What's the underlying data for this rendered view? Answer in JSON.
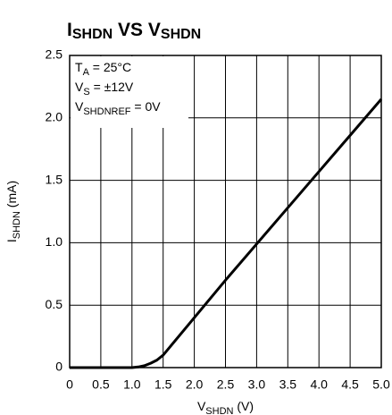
{
  "chart_data": {
    "type": "line",
    "title": [
      {
        "text": "I",
        "sub": false
      },
      {
        "text": "SHDN",
        "sub": true
      },
      {
        "text": " VS ",
        "sub": false
      },
      {
        "text": "V",
        "sub": false
      },
      {
        "text": "SHDN",
        "sub": true
      }
    ],
    "xlabel": [
      {
        "text": "V",
        "sub": false
      },
      {
        "text": "SHDN",
        "sub": true
      },
      {
        "text": " (V)",
        "sub": false
      }
    ],
    "ylabel": [
      {
        "text": "I",
        "sub": false
      },
      {
        "text": "SHDN",
        "sub": true
      },
      {
        "text": " (mA)",
        "sub": false
      }
    ],
    "annotations": [
      [
        {
          "text": "T",
          "sub": false
        },
        {
          "text": "A",
          "sub": true
        },
        {
          "text": " = 25°C",
          "sub": false
        }
      ],
      [
        {
          "text": "V",
          "sub": false
        },
        {
          "text": "S",
          "sub": true
        },
        {
          "text": " = ±12V",
          "sub": false
        }
      ],
      [
        {
          "text": "V",
          "sub": false
        },
        {
          "text": "SHDNREF",
          "sub": true
        },
        {
          "text": " = 0V",
          "sub": false
        }
      ]
    ],
    "x": [
      0,
      0.5,
      1.0,
      1.1,
      1.2,
      1.3,
      1.4,
      1.5,
      1.6,
      1.8,
      2.0,
      2.5,
      3.0,
      3.5,
      4.0,
      4.5,
      5.0
    ],
    "series": [
      {
        "color": "#000000",
        "values": [
          0,
          0,
          0,
          0.005,
          0.015,
          0.035,
          0.06,
          0.1,
          0.16,
          0.28,
          0.4,
          0.7,
          0.99,
          1.28,
          1.57,
          1.86,
          2.15
        ]
      }
    ],
    "xlim": [
      0,
      5
    ],
    "ylim": [
      0,
      2.5
    ],
    "xticks": [
      0,
      0.5,
      {
        "value": 1,
        "label": "1.0"
      },
      1.5,
      {
        "value": 2,
        "label": "2.0"
      },
      2.5,
      {
        "value": 3,
        "label": "3.0"
      },
      3.5,
      {
        "value": 4,
        "label": "4.0"
      },
      4.5,
      {
        "value": 5,
        "label": "5.0"
      }
    ],
    "yticks": [
      0,
      0.5,
      {
        "value": 1,
        "label": "1.0"
      },
      1.5,
      {
        "value": 2,
        "label": "2.0"
      },
      2.5
    ],
    "grid": true
  }
}
